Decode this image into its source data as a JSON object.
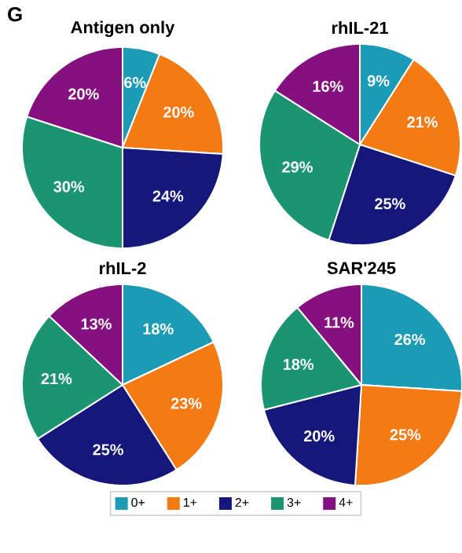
{
  "chart_data": [
    {
      "type": "pie",
      "title": "Antigen only",
      "annotations": [
        "G"
      ],
      "categories": [
        null,
        null,
        null,
        null,
        null
      ],
      "values": [
        6,
        20,
        24,
        30,
        20
      ],
      "value_labels": [
        "6%",
        "20%",
        "24%",
        "30%",
        "20%"
      ],
      "colors": [
        "#1c9bb6",
        "#f47a14",
        "#15177a",
        "#1b9571",
        "#85107f"
      ]
    },
    {
      "type": "pie",
      "title": "rhIL-21",
      "categories": [
        null,
        null,
        null,
        null,
        null
      ],
      "values": [
        9,
        21,
        25,
        29,
        16
      ],
      "value_labels": [
        "9%",
        "21%",
        "25%",
        "29%",
        "16%"
      ],
      "colors": [
        "#1c9bb6",
        "#f47a14",
        "#15177a",
        "#1b9571",
        "#85107f"
      ]
    },
    {
      "type": "pie",
      "title": "rhIL-2",
      "categories": [
        null,
        null,
        null,
        null,
        null
      ],
      "values": [
        18,
        23,
        25,
        21,
        13
      ],
      "value_labels": [
        "18%",
        "23%",
        "25%",
        "21%",
        "13%"
      ],
      "colors": [
        "#1c9bb6",
        "#f47a14",
        "#15177a",
        "#1b9571",
        "#85107f"
      ]
    },
    {
      "type": "pie",
      "title": "SAR'245",
      "categories": [
        "0+",
        "1+",
        "2+",
        "3+",
        "4+"
      ],
      "values": [
        26,
        25,
        20,
        18,
        11
      ],
      "value_labels": [
        "26%",
        "25%",
        "20%",
        "18%",
        "11%"
      ],
      "colors": [
        "#1c9bb6",
        "#f47a14",
        "#15177a",
        "#1b9571",
        "#85107f"
      ],
      "legend": "bottom"
    }
  ]
}
